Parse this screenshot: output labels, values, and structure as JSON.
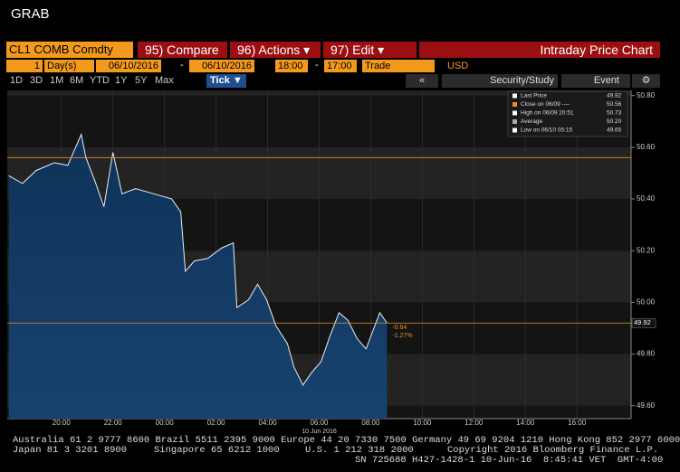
{
  "header": {
    "title": "GRAB"
  },
  "toolbar": {
    "security": "CL1 COMB Comdty",
    "buttons": [
      "95) Compare",
      "96) Actions ▾",
      "97) Edit ▾"
    ],
    "chart_name": "Intraday Price Chart"
  },
  "range_bar": {
    "count": "1",
    "unit": "Day(s)",
    "start_date": "06/10/2016",
    "separator": "-",
    "end_date": "06/10/2016",
    "start_time": "18:00",
    "end_time": "17:00",
    "field": "Trade",
    "currency": "USD"
  },
  "periods": [
    "1D",
    "3D",
    "1M",
    "6M",
    "YTD",
    "1Y",
    "5Y",
    "Max"
  ],
  "period_selected": "Tick ▼",
  "nav": {
    "study": "Security/Study",
    "event": "Event"
  },
  "chart_data": {
    "type": "area",
    "x": [
      -0.04,
      0.49,
      1.02,
      1.72,
      2.25,
      2.77,
      2.95,
      3.3,
      3.65,
      4.0,
      4.35,
      4.88,
      5.58,
      6.28,
      6.63,
      6.81,
      7.16,
      7.68,
      8.21,
      8.67,
      8.81,
      9.26,
      9.61,
      9.96,
      10.32,
      10.77,
      11.02,
      11.37,
      11.72,
      12.07,
      12.42,
      12.77,
      13.12,
      13.47,
      13.82,
      14.35,
      14.63
    ],
    "series": [
      {
        "color": "#e8eef6",
        "values": [
          50.49,
          50.46,
          50.51,
          50.54,
          50.53,
          50.65,
          50.56,
          50.47,
          50.37,
          50.58,
          50.42,
          50.44,
          50.42,
          50.4,
          50.35,
          50.12,
          50.16,
          50.17,
          50.21,
          50.23,
          49.98,
          50.01,
          50.07,
          50.01,
          49.91,
          49.84,
          49.75,
          49.68,
          49.73,
          49.77,
          49.87,
          49.96,
          49.93,
          49.86,
          49.82,
          49.96,
          49.92
        ]
      }
    ],
    "xlim": [
      -0.1,
      24.1
    ],
    "xticks": [
      {
        "value": 2,
        "label": "20:00"
      },
      {
        "value": 4,
        "label": "22:00"
      },
      {
        "value": 6,
        "label": "00:00"
      },
      {
        "value": 8,
        "label": "02:00"
      },
      {
        "value": 10,
        "label": "04:00"
      },
      {
        "value": 12,
        "label": "06:00"
      },
      {
        "value": 14,
        "label": "08:00"
      },
      {
        "value": 16,
        "label": "10:00"
      },
      {
        "value": 18,
        "label": "12:00"
      },
      {
        "value": 20,
        "label": "14:00"
      },
      {
        "value": 22,
        "label": "16:00"
      }
    ],
    "ylim": [
      49.55,
      50.82
    ],
    "yticks": [
      {
        "value": 49.6,
        "label": "49.60"
      },
      {
        "value": 49.8,
        "label": "49.80"
      },
      {
        "value": 50,
        "label": "50.00"
      },
      {
        "value": 50.2,
        "label": "50.20"
      },
      {
        "value": 50.4,
        "label": "50.40"
      },
      {
        "value": 50.6,
        "label": "50.60"
      },
      {
        "value": 50.8,
        "label": "50.80"
      }
    ],
    "date_label": "10 Jun 2016",
    "reference_lines": [
      {
        "value": 50.56,
        "color": "#e8902a"
      },
      {
        "value": 49.92,
        "color": "#e8902a",
        "value_label": "49.92"
      }
    ],
    "annotations": [
      "-0.64",
      "-1.27%"
    ],
    "legend": [
      {
        "label": "Last Price",
        "value": "49.92"
      },
      {
        "label": "Close on 06/09 ----",
        "value": "50.56"
      },
      {
        "label": "High on 06/09 20:51",
        "value": "50.73"
      },
      {
        "label": "Average",
        "value": "50.20"
      },
      {
        "label": "Low on 06/10 05:15",
        "value": "49.65"
      }
    ]
  },
  "footer": [
    "Australia 61 2 9777 8600 Brazil 5511 2395 9000 Europe 44 20 7330 7500 Germany 49 69 9204 1210 Hong Kong 852 2977 6000",
    "Japan 81 3 3201 8900",
    "Singapore 65 6212 1000",
    "U.S. 1 212 318 2000",
    "Copyright 2016 Bloomberg Finance L.P.",
    "SN 725688 H427-1428-1 10-Jun-16  8:45:41 VET  GMT-4:00"
  ]
}
